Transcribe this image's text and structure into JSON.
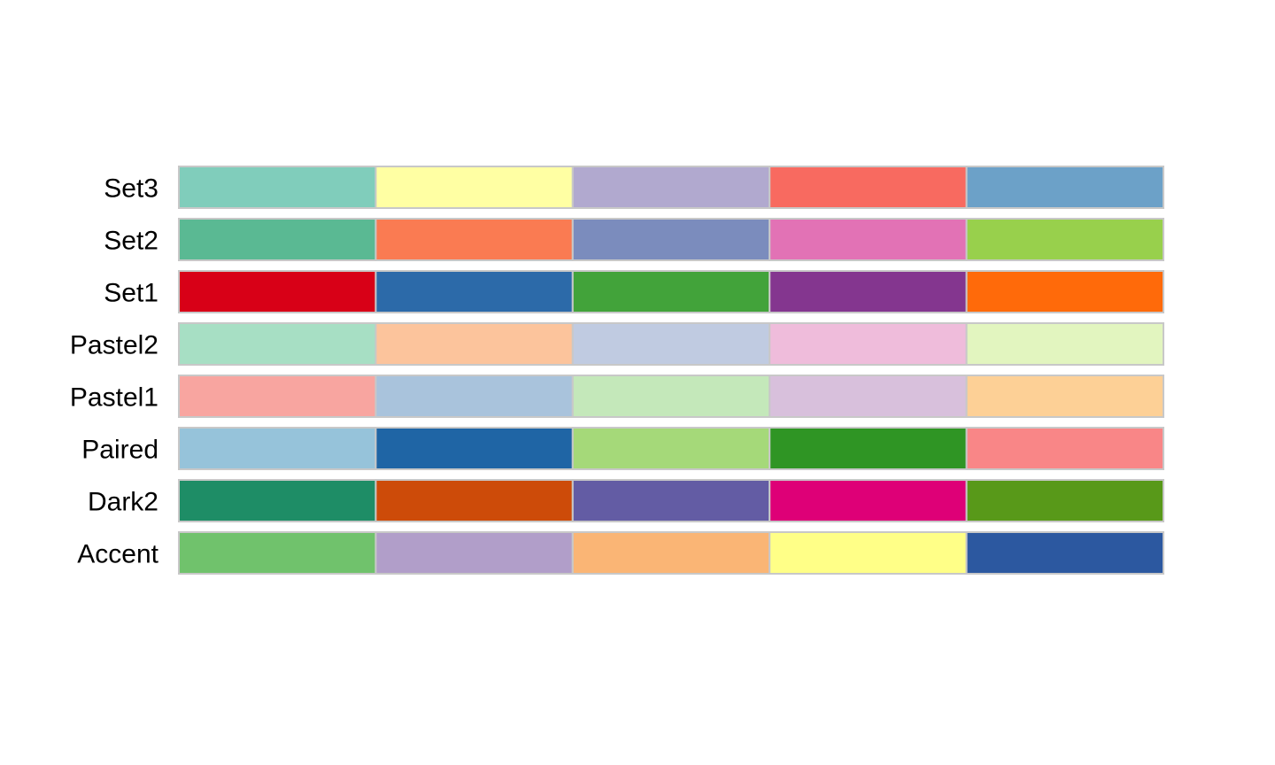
{
  "chart_data": {
    "type": "table",
    "title": "",
    "xlabel": "",
    "ylabel": "",
    "rows": [
      {
        "name": "Set3",
        "colors": [
          "#80CDBB",
          "#FFFFA3",
          "#B1A9CF",
          "#F86A60",
          "#6CA1C8"
        ]
      },
      {
        "name": "Set2",
        "colors": [
          "#5AB993",
          "#FA7B52",
          "#7B8CBD",
          "#E272B5",
          "#98D04C"
        ]
      },
      {
        "name": "Set1",
        "colors": [
          "#D80017",
          "#2C6AA9",
          "#42A33A",
          "#84368F",
          "#FF6A0A"
        ]
      },
      {
        "name": "Pastel2",
        "colors": [
          "#A7DFC4",
          "#FCC49C",
          "#C0CBE1",
          "#EFBCDB",
          "#E2F5BF"
        ]
      },
      {
        "name": "Pastel1",
        "colors": [
          "#F8A5A0",
          "#A9C3DC",
          "#C4E8BA",
          "#D8C0DC",
          "#FDD096"
        ]
      },
      {
        "name": "Paired",
        "colors": [
          "#96C3DA",
          "#1F65A5",
          "#A5D979",
          "#2F9524",
          "#F98687"
        ]
      },
      {
        "name": "Dark2",
        "colors": [
          "#1E8D66",
          "#CD4B09",
          "#635CA4",
          "#DE0077",
          "#589919"
        ]
      },
      {
        "name": "Accent",
        "colors": [
          "#70C26C",
          "#B19EC9",
          "#FAB575",
          "#FFFF87",
          "#2C58A0"
        ]
      }
    ]
  }
}
